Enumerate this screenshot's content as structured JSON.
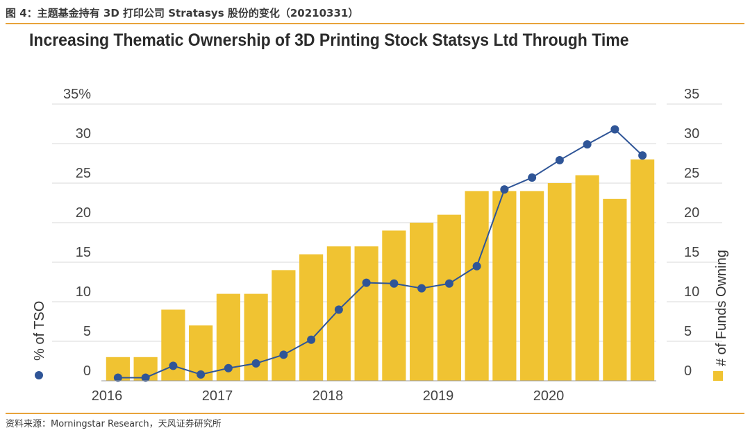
{
  "figure": {
    "caption": "图 4：主题基金持有 3D 打印公司 Stratasys 股份的变化（20210331）",
    "source": "资料来源：Morningstar Research，天风证券研究所"
  },
  "colors": {
    "bar": "#f0c332",
    "line": "#2f5597",
    "grid": "#d9d9d9",
    "accent_rule": "#e8a33a"
  },
  "chart_data": {
    "type": "bar",
    "title": "Increasing Thematic Ownership of 3D Printing Stock Statsys Ltd Through Time",
    "left_axis": {
      "label": "% of TSO",
      "ticks": [
        "0",
        "5",
        "10",
        "15",
        "20",
        "25",
        "30",
        "35%"
      ],
      "range": [
        0,
        35
      ]
    },
    "right_axis": {
      "label": "# of Funds Owning",
      "ticks": [
        "0",
        "5",
        "10",
        "15",
        "20",
        "25",
        "30",
        "35"
      ],
      "range": [
        0,
        35
      ]
    },
    "x_ticks": [
      {
        "label": "2016",
        "at_period": -0.4
      },
      {
        "label": "2017",
        "at_period": 3.6
      },
      {
        "label": "2018",
        "at_period": 7.6
      },
      {
        "label": "2019",
        "at_period": 11.6
      },
      {
        "label": "2020",
        "at_period": 15.6
      }
    ],
    "series": [
      {
        "name": "# of Funds Owning",
        "type": "bar",
        "axis": "right",
        "values": [
          3,
          3,
          9,
          7,
          11,
          11,
          14,
          16,
          17,
          17,
          19,
          20,
          21,
          24,
          24,
          24,
          25,
          26,
          23,
          28
        ]
      },
      {
        "name": "% of TSO",
        "type": "line",
        "axis": "left",
        "values": [
          0.4,
          0.4,
          1.9,
          0.8,
          1.6,
          2.2,
          3.3,
          5.2,
          9.0,
          12.4,
          12.3,
          11.7,
          12.3,
          14.5,
          24.2,
          25.7,
          27.9,
          29.9,
          31.8,
          28.5
        ]
      }
    ],
    "grid": true
  }
}
